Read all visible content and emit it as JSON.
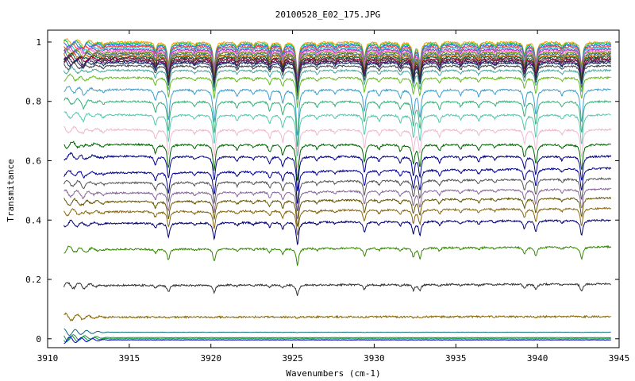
{
  "chart_data": {
    "type": "line",
    "title": "20100528_E02_175.JPG",
    "xlabel": "Wavenumbers (cm-1)",
    "ylabel": "Transmitance",
    "xlim": [
      3910,
      3945
    ],
    "ylim": [
      -0.03,
      1.04
    ],
    "x_ticks": [
      3910,
      3915,
      3920,
      3925,
      3930,
      3935,
      3940,
      3945
    ],
    "y_ticks": [
      0,
      0.2,
      0.4,
      0.6,
      0.8,
      1
    ],
    "x_tick_labels": [
      "3910",
      "3915",
      "3920",
      "3925",
      "3930",
      "3935",
      "3940",
      "3945"
    ],
    "y_tick_labels": [
      "0",
      "0.2",
      "0.4",
      "0.6",
      "0.8",
      "1"
    ],
    "grid": false,
    "legend": false,
    "x_range_data": [
      3911,
      3944.5
    ],
    "absorption_lines": [
      {
        "x": 3912.2,
        "depth": 0.1
      },
      {
        "x": 3913.4,
        "depth": 0.06
      },
      {
        "x": 3916.6,
        "depth": 0.2
      },
      {
        "x": 3917.4,
        "depth": 0.55
      },
      {
        "x": 3919.0,
        "depth": 0.08
      },
      {
        "x": 3920.2,
        "depth": 0.6
      },
      {
        "x": 3921.6,
        "depth": 0.12
      },
      {
        "x": 3922.6,
        "depth": 0.08
      },
      {
        "x": 3923.6,
        "depth": 0.18
      },
      {
        "x": 3924.4,
        "depth": 0.25
      },
      {
        "x": 3925.3,
        "depth": 0.85
      },
      {
        "x": 3926.5,
        "depth": 0.1
      },
      {
        "x": 3927.6,
        "depth": 0.08
      },
      {
        "x": 3929.4,
        "depth": 0.4
      },
      {
        "x": 3930.3,
        "depth": 0.12
      },
      {
        "x": 3931.6,
        "depth": 0.15
      },
      {
        "x": 3932.4,
        "depth": 0.45
      },
      {
        "x": 3932.8,
        "depth": 0.5
      },
      {
        "x": 3934.0,
        "depth": 0.15
      },
      {
        "x": 3935.3,
        "depth": 0.1
      },
      {
        "x": 3936.4,
        "depth": 0.12
      },
      {
        "x": 3937.4,
        "depth": 0.08
      },
      {
        "x": 3939.2,
        "depth": 0.3
      },
      {
        "x": 3939.9,
        "depth": 0.45
      },
      {
        "x": 3941.5,
        "depth": 0.1
      },
      {
        "x": 3942.7,
        "depth": 0.6
      }
    ],
    "series": [
      {
        "baseline": 1.0,
        "color": "#ff9900"
      },
      {
        "baseline": 0.995,
        "color": "#00cc44"
      },
      {
        "baseline": 0.99,
        "color": "#3366ff"
      },
      {
        "baseline": 0.985,
        "color": "#ff3333"
      },
      {
        "baseline": 0.98,
        "color": "#33cccc"
      },
      {
        "baseline": 0.975,
        "color": "#9933cc"
      },
      {
        "baseline": 0.97,
        "color": "#ff66cc"
      },
      {
        "baseline": 0.965,
        "color": "#669900"
      },
      {
        "baseline": 0.96,
        "color": "#336699"
      },
      {
        "baseline": 0.955,
        "color": "#cc6600"
      },
      {
        "baseline": 0.95,
        "color": "#006633"
      },
      {
        "baseline": 0.945,
        "color": "#990033"
      },
      {
        "baseline": 0.94,
        "color": "#333333"
      },
      {
        "baseline": 0.935,
        "color": "#660066"
      },
      {
        "baseline": 0.93,
        "color": "#003366"
      },
      {
        "baseline": 0.92,
        "color": "#444444"
      },
      {
        "baseline": 0.905,
        "color": "#4daaa0"
      },
      {
        "baseline": 0.88,
        "color": "#66bb22"
      },
      {
        "baseline": 0.84,
        "color": "#3d9ecc"
      },
      {
        "baseline": 0.8,
        "color": "#38b078"
      },
      {
        "baseline": 0.755,
        "color": "#55c8b0"
      },
      {
        "baseline": 0.705,
        "color": "#f0b8d0"
      },
      {
        "baseline": 0.655,
        "color": "#006600"
      },
      {
        "baseline": 0.615,
        "color": "#000088"
      },
      {
        "baseline": 0.575,
        "color": "#000099"
      },
      {
        "baseline": 0.54,
        "color": "#555555"
      },
      {
        "baseline": 0.505,
        "color": "#886699"
      },
      {
        "baseline": 0.475,
        "color": "#665500"
      },
      {
        "baseline": 0.44,
        "color": "#886611"
      },
      {
        "baseline": 0.4,
        "color": "#000077"
      },
      {
        "baseline": 0.31,
        "color": "#338800"
      },
      {
        "baseline": 0.185,
        "color": "#333333"
      },
      {
        "baseline": 0.075,
        "color": "#886600"
      },
      {
        "baseline": 0.022,
        "color": "#116677"
      },
      {
        "baseline": 0.004,
        "color": "#228844"
      },
      {
        "baseline": 0.0,
        "color": "#009933"
      },
      {
        "baseline": -0.004,
        "color": "#0000cc"
      }
    ]
  }
}
